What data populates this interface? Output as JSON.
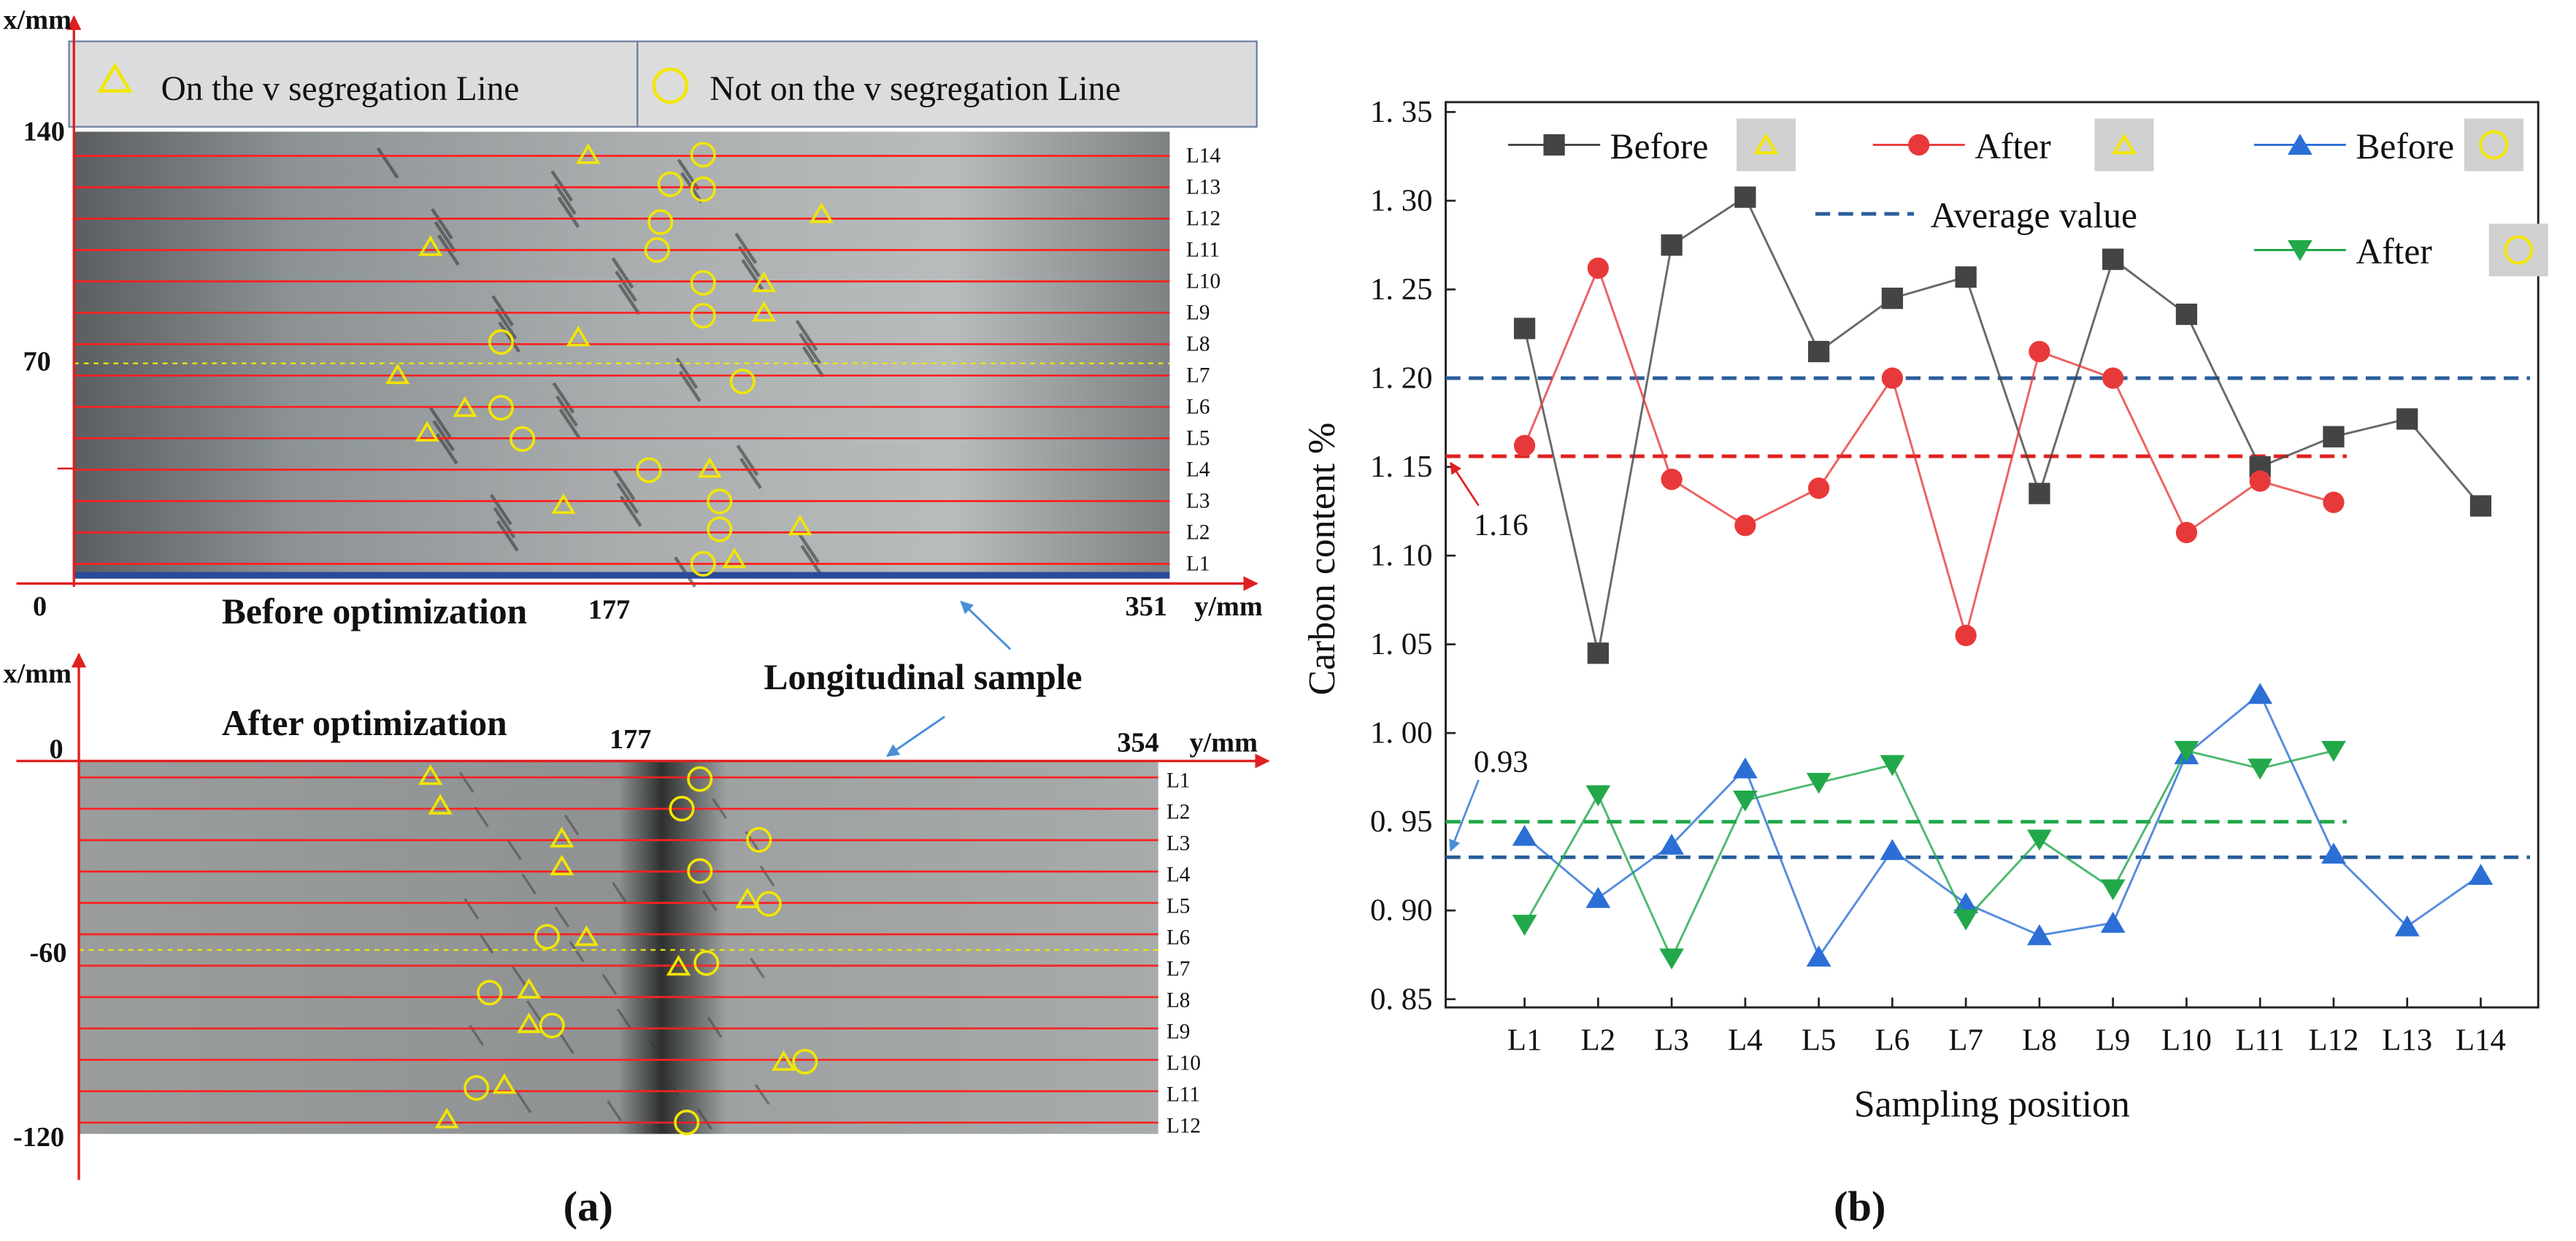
{
  "panel_a": {
    "legend": [
      "On the v segregation Line",
      "Not on the v segregation Line"
    ],
    "top": {
      "x_label": "x/mm",
      "y_label": "y/mm",
      "x_ticks": [
        "140",
        "70",
        "0"
      ],
      "y_ticks": [
        "177",
        "351"
      ],
      "title": "Before optimization",
      "lines": [
        "L1",
        "L2",
        "L3",
        "L4",
        "L5",
        "L6",
        "L7",
        "L8",
        "L9",
        "L10",
        "L11",
        "L12",
        "L13",
        "L14"
      ]
    },
    "note": "Longitudinal sample",
    "bottom": {
      "x_label": "x/mm",
      "y_label": "y/mm",
      "x_ticks": [
        "0",
        "-60",
        "-120"
      ],
      "y_ticks": [
        "177",
        "354"
      ],
      "title": "After optimization",
      "lines": [
        "L1",
        "L2",
        "L3",
        "L4",
        "L5",
        "L6",
        "L7",
        "L8",
        "L9",
        "L10",
        "L11",
        "L12"
      ]
    },
    "label": "(a)"
  },
  "chart_data": {
    "type": "line",
    "panel_label": "(b)",
    "x_label": "Sampling position",
    "y_label": "Carbon content  %",
    "categories": [
      "L1",
      "L2",
      "L3",
      "L4",
      "L5",
      "L6",
      "L7",
      "L8",
      "L9",
      "L10",
      "L11",
      "L12",
      "L13",
      "L14"
    ],
    "ylim": [
      0.85,
      1.35
    ],
    "yticks": [
      {
        "value": 0.85,
        "label": "0. 85"
      },
      {
        "value": 0.9,
        "label": "0. 90"
      },
      {
        "value": 0.95,
        "label": "0. 95"
      },
      {
        "value": 1.0,
        "label": "1. 00"
      },
      {
        "value": 1.05,
        "label": "1. 05"
      },
      {
        "value": 1.1,
        "label": "1. 10"
      },
      {
        "value": 1.15,
        "label": "1. 15"
      },
      {
        "value": 1.2,
        "label": "1. 20"
      },
      {
        "value": 1.25,
        "label": "1. 25"
      },
      {
        "value": 1.3,
        "label": "1. 30"
      },
      {
        "value": 1.35,
        "label": "1. 35"
      }
    ],
    "series": [
      {
        "name": "Before",
        "color": "#444444",
        "marker": "square",
        "values": [
          1.228,
          1.045,
          1.275,
          1.302,
          1.215,
          1.245,
          1.257,
          1.135,
          1.267,
          1.236,
          1.15,
          1.167,
          1.177,
          1.128
        ]
      },
      {
        "name": "After",
        "color": "#e8393a",
        "marker": "circle",
        "values": [
          1.162,
          1.262,
          1.143,
          1.117,
          1.138,
          1.2,
          1.055,
          1.215,
          1.2,
          1.113,
          1.142,
          1.13,
          null,
          null
        ]
      },
      {
        "name": "Before",
        "color": "#2b6fd6",
        "marker": "triangle",
        "values": [
          0.942,
          0.907,
          0.937,
          0.98,
          0.874,
          0.934,
          0.904,
          0.886,
          0.893,
          0.988,
          1.022,
          0.932,
          0.891,
          0.92
        ]
      },
      {
        "name": "After",
        "color": "#22a84a",
        "marker": "triangle-down",
        "values": [
          0.892,
          0.965,
          0.873,
          0.962,
          0.972,
          0.982,
          0.895,
          0.94,
          0.912,
          0.99,
          0.98,
          0.99,
          null,
          null
        ]
      }
    ],
    "average_legend": "Average value",
    "reference_lines": [
      {
        "value": 1.2,
        "color": "#2a5d9a",
        "extent": "full"
      },
      {
        "value": 1.156,
        "color": "#e02020",
        "extent": "partial",
        "label": "1.16"
      },
      {
        "value": 0.95,
        "color": "#22a84a",
        "extent": "partial"
      },
      {
        "value": 0.93,
        "color": "#2a5d9a",
        "extent": "full",
        "label": "0.93"
      }
    ]
  }
}
